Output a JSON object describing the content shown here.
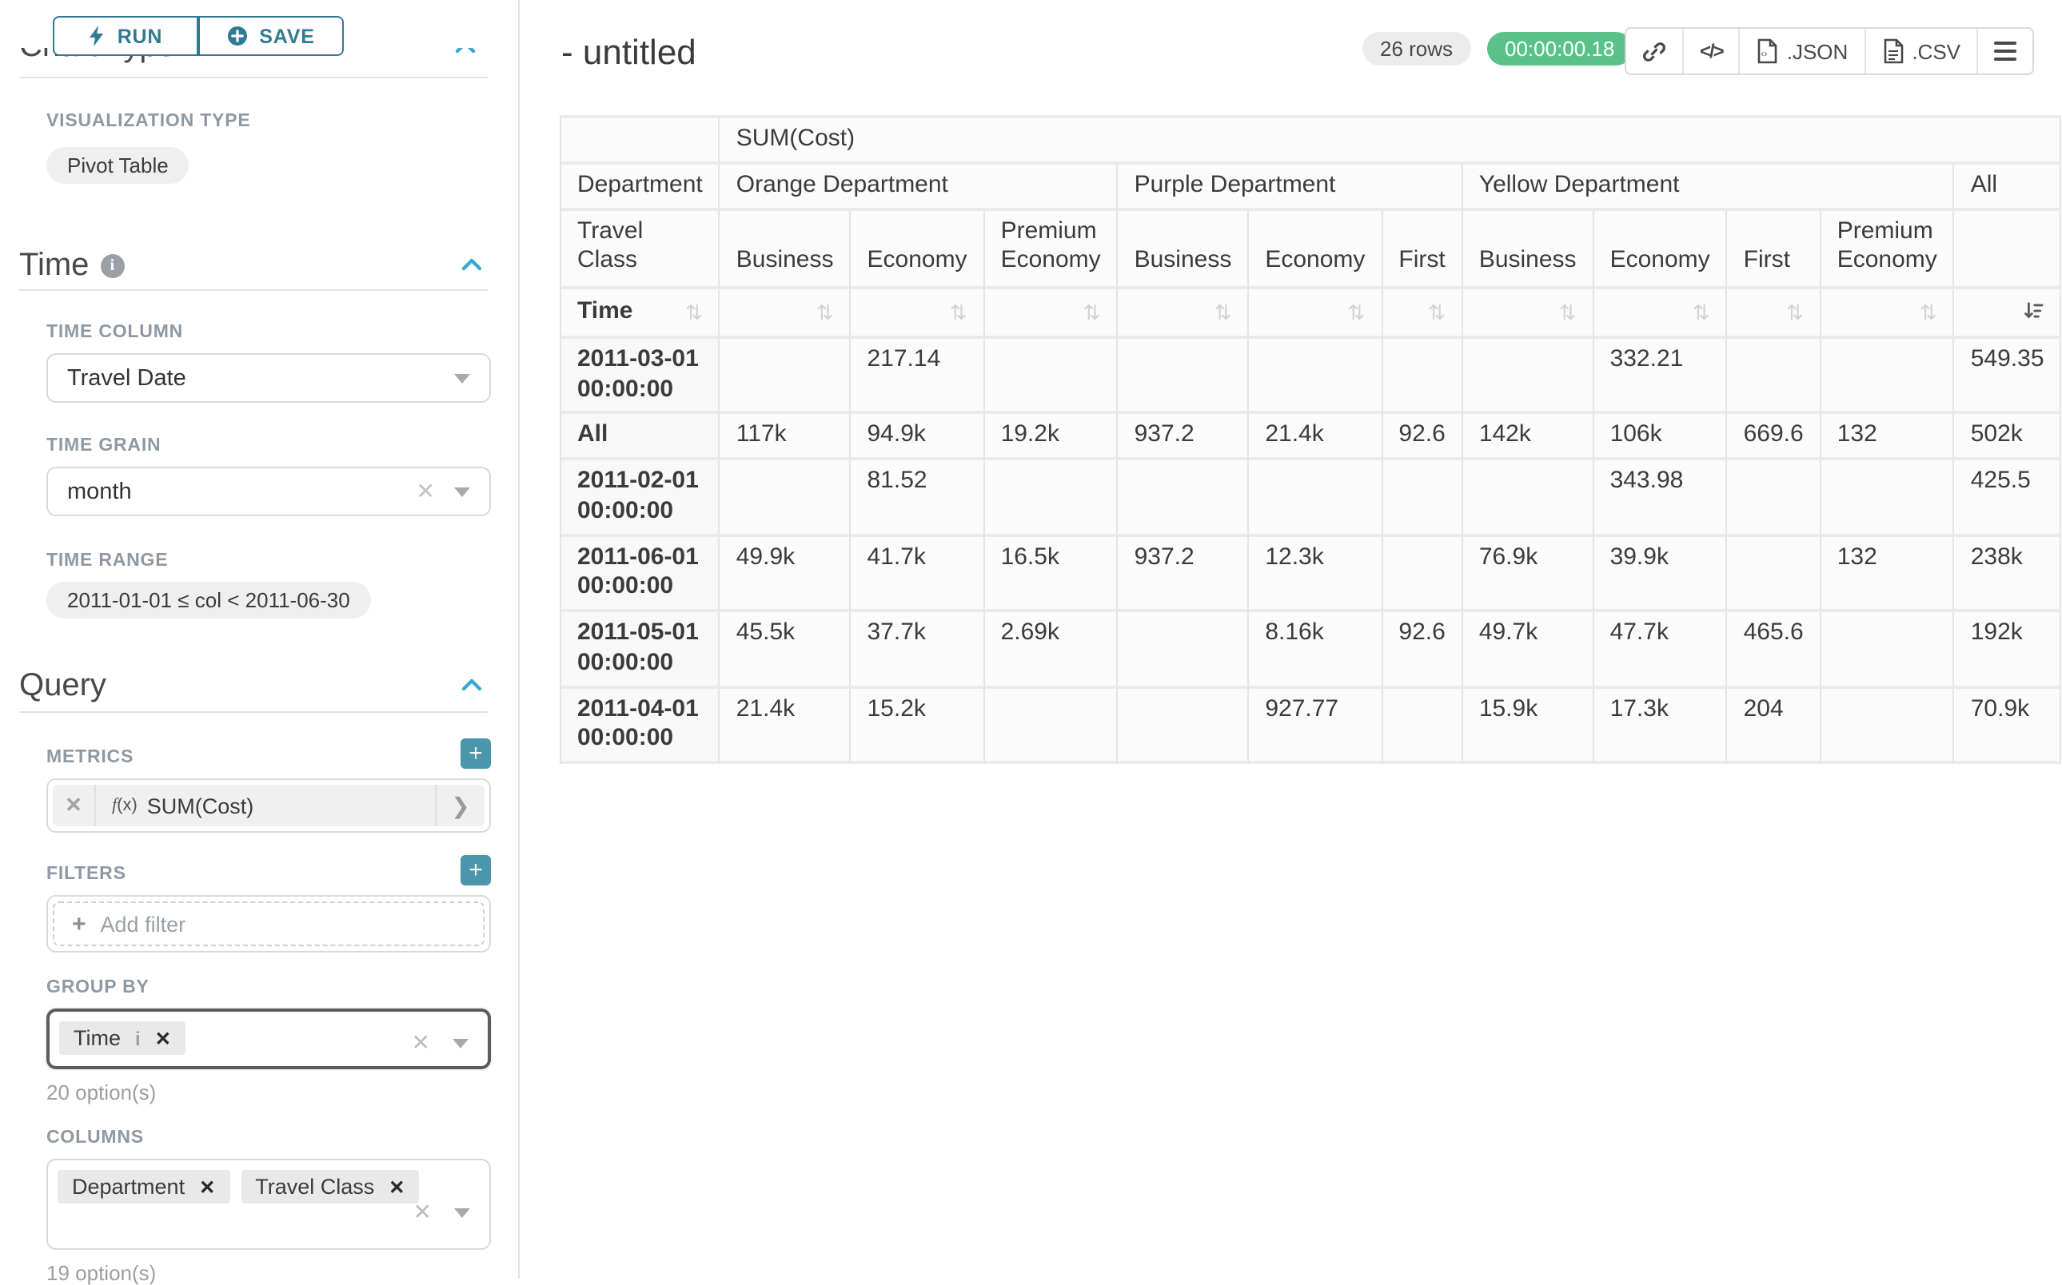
{
  "sidebar": {
    "run_label": "RUN",
    "save_label": "SAVE",
    "chart_type_title": "Chart Type",
    "viz_label": "VISUALIZATION TYPE",
    "viz_value": "Pivot Table",
    "time_section": "Time",
    "time_column_label": "TIME COLUMN",
    "time_column_value": "Travel Date",
    "time_grain_label": "TIME GRAIN",
    "time_grain_value": "month",
    "time_range_label": "TIME RANGE",
    "time_range_value": "2011-01-01 ≤ col < 2011-06-30",
    "query_section": "Query",
    "metrics_label": "METRICS",
    "metric_fx": "(x)",
    "metric_value": "SUM(Cost)",
    "filters_label": "FILTERS",
    "add_filter_label": "Add filter",
    "group_by_label": "GROUP BY",
    "group_by_tags": [
      {
        "label": "Time",
        "has_info": true
      }
    ],
    "group_by_options": "20 option(s)",
    "columns_label": "COLUMNS",
    "columns_tags": [
      {
        "label": "Department"
      },
      {
        "label": "Travel Class"
      }
    ],
    "columns_options": "19 option(s)"
  },
  "header": {
    "title": "- untitled",
    "row_count": "26 rows",
    "elapsed": "00:00:00.18",
    "export_json_label": ".JSON",
    "export_csv_label": ".CSV"
  },
  "colors": {
    "accent_teal": "#327a92",
    "accent_cyan": "#3aa8d0",
    "plus_teal": "#4a96aa",
    "timer_green": "#5ac189"
  },
  "chart_data": {
    "type": "table",
    "title": "SUM(Cost) pivot table",
    "metric_header": "SUM(Cost)",
    "col_dimension_row_label": "Department",
    "subcol_dimension_row_label": "Travel Class",
    "row_dimension_label": "Time",
    "column_groups": [
      {
        "name": "Orange Department",
        "cols": [
          "Business",
          "Economy",
          "Premium Economy"
        ]
      },
      {
        "name": "Purple Department",
        "cols": [
          "Business",
          "Economy",
          "First"
        ]
      },
      {
        "name": "Yellow Department",
        "cols": [
          "Business",
          "Economy",
          "First",
          "Premium Economy"
        ]
      },
      {
        "name": "All",
        "cols": [
          ""
        ]
      }
    ],
    "sort_state": "last column sorted descending",
    "rows": [
      {
        "label": "2011-03-01 00:00:00",
        "values": [
          "",
          "217.14",
          "",
          "",
          "",
          "",
          "",
          "332.21",
          "",
          "",
          "549.35"
        ]
      },
      {
        "label": "All",
        "values": [
          "117k",
          "94.9k",
          "19.2k",
          "937.2",
          "21.4k",
          "92.6",
          "142k",
          "106k",
          "669.6",
          "132",
          "502k"
        ]
      },
      {
        "label": "2011-02-01 00:00:00",
        "values": [
          "",
          "81.52",
          "",
          "",
          "",
          "",
          "",
          "343.98",
          "",
          "",
          "425.5"
        ]
      },
      {
        "label": "2011-06-01 00:00:00",
        "values": [
          "49.9k",
          "41.7k",
          "16.5k",
          "937.2",
          "12.3k",
          "",
          "76.9k",
          "39.9k",
          "",
          "132",
          "238k"
        ]
      },
      {
        "label": "2011-05-01 00:00:00",
        "values": [
          "45.5k",
          "37.7k",
          "2.69k",
          "",
          "8.16k",
          "92.6",
          "49.7k",
          "47.7k",
          "465.6",
          "",
          "192k"
        ]
      },
      {
        "label": "2011-04-01 00:00:00",
        "values": [
          "21.4k",
          "15.2k",
          "",
          "",
          "927.77",
          "",
          "15.9k",
          "17.3k",
          "204",
          "",
          "70.9k"
        ]
      }
    ]
  }
}
